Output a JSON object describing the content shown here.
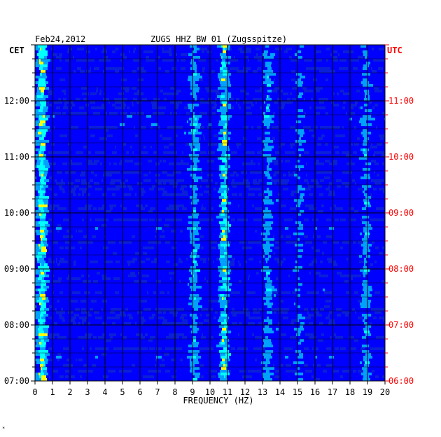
{
  "header": {
    "date": "Feb24,2012",
    "station": "ZUGS HHZ BW 01 (Zugsspitze)",
    "left_tz": "CET",
    "right_tz": "UTC"
  },
  "footer_mark": "*",
  "colors": {
    "background": "#ffffff",
    "plot_base": "#0a1fd8",
    "grid": "#000000",
    "utc_label": "#ff0000",
    "cet_label": "#000000"
  },
  "chart_data": {
    "type": "heatmap",
    "title": "ZUGS HHZ BW 01 (Zugsspitze)",
    "xlabel": "FREQUENCY (HZ)",
    "ylabel": "",
    "xlim": [
      0,
      20
    ],
    "x_ticks": [
      "0",
      "1",
      "2",
      "3",
      "4",
      "5",
      "6",
      "7",
      "8",
      "9",
      "10",
      "11",
      "12",
      "13",
      "14",
      "15",
      "16",
      "17",
      "18",
      "19",
      "20"
    ],
    "y_left_ticks": [
      {
        "label": "07:00",
        "hour": 7
      },
      {
        "label": "08:00",
        "hour": 8
      },
      {
        "label": "09:00",
        "hour": 9
      },
      {
        "label": "10:00",
        "hour": 10
      },
      {
        "label": "11:00",
        "hour": 11
      },
      {
        "label": "12:00",
        "hour": 12
      }
    ],
    "y_right_ticks": [
      {
        "label": "06:00",
        "hour": 7
      },
      {
        "label": "07:00",
        "hour": 8
      },
      {
        "label": "08:00",
        "hour": 9
      },
      {
        "label": "09:00",
        "hour": 10
      },
      {
        "label": "10:00",
        "hour": 11
      },
      {
        "label": "11:00",
        "hour": 12
      }
    ],
    "time_range_cet": [
      "07:00",
      "13:00"
    ],
    "colormap": [
      "#000080",
      "#0000ff",
      "#00a0ff",
      "#00ffff",
      "#ffff00",
      "#ff8000",
      "#ff0000"
    ],
    "energy_bands_hz": [
      {
        "freq": 0.3,
        "strength": 0.8
      },
      {
        "freq": 9.0,
        "strength": 0.55
      },
      {
        "freq": 10.7,
        "strength": 0.85
      },
      {
        "freq": 13.2,
        "strength": 0.45
      },
      {
        "freq": 15.0,
        "strength": 0.3
      },
      {
        "freq": 18.8,
        "strength": 0.4
      }
    ]
  }
}
